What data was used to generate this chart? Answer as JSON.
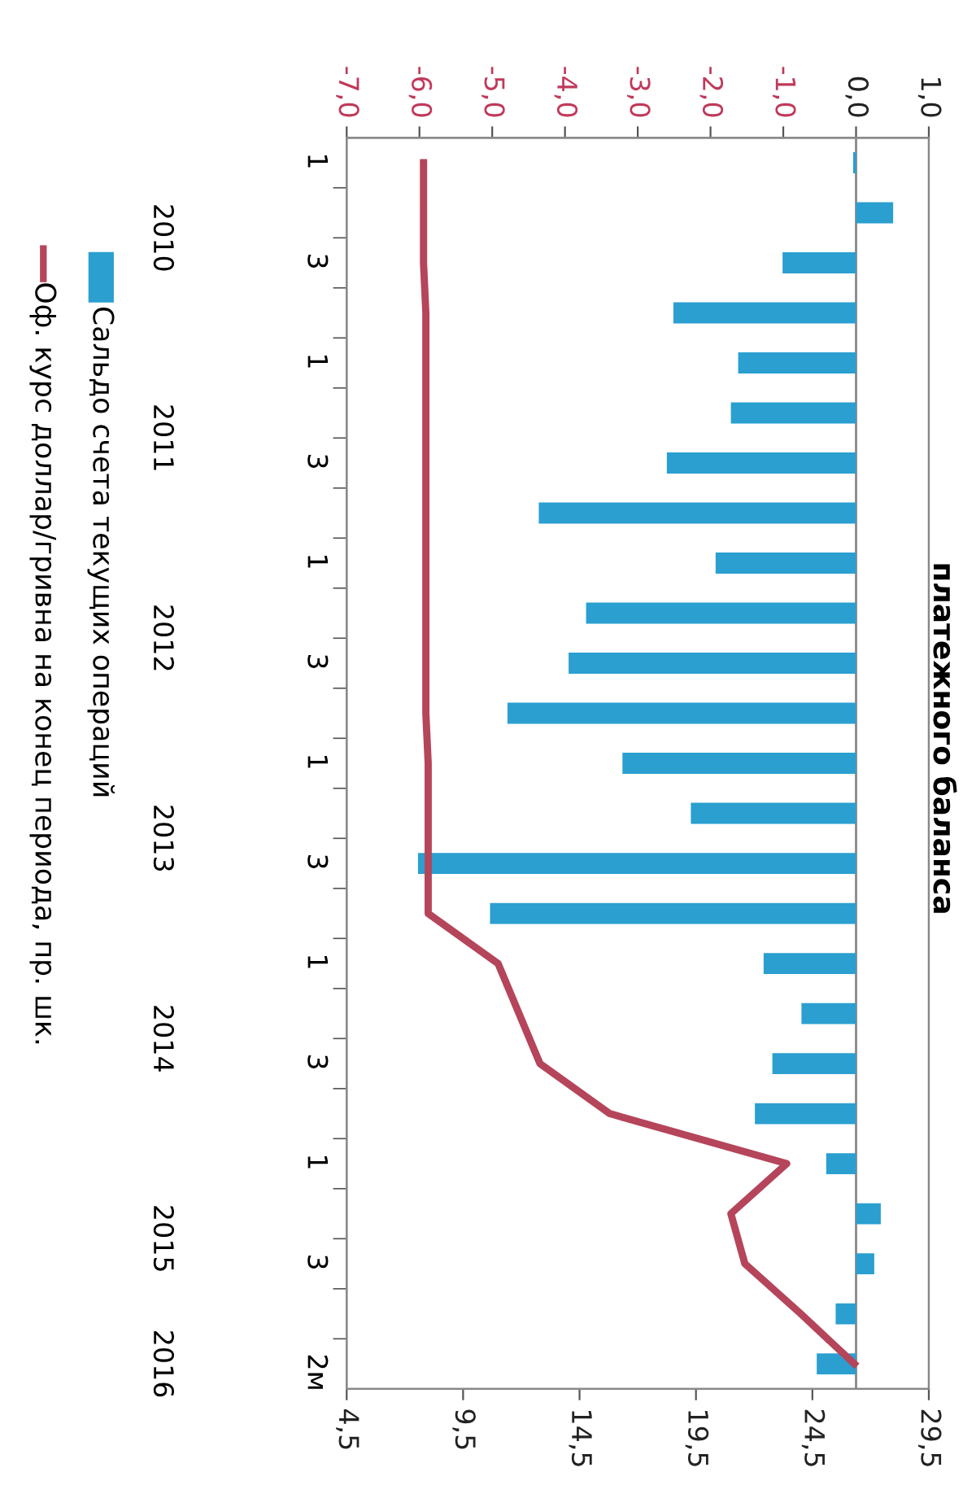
{
  "chart_data": {
    "type": "bar",
    "orientation": "horizontal",
    "title": "платежного баланса",
    "categories": [
      "1",
      null,
      "3",
      null,
      "1",
      null,
      "3",
      null,
      "1",
      null,
      "3",
      null,
      "1",
      null,
      "3",
      null,
      "1",
      null,
      "3",
      null,
      "1",
      null,
      "3",
      null,
      "2м"
    ],
    "annotations": [
      "2010",
      "2011",
      "2012",
      "2013",
      "2014",
      "2015",
      "2016"
    ],
    "series": [
      {
        "name": "Сальдо счета текущих операций",
        "color": "#2a9fd0",
        "values": [
          -0.04,
          0.51,
          -1.01,
          -2.51,
          -1.62,
          -1.72,
          -2.6,
          -4.36,
          -1.93,
          -3.71,
          -3.95,
          -4.79,
          -3.21,
          -2.27,
          -6.02,
          -5.03,
          -1.27,
          -0.75,
          -1.15,
          -1.39,
          -0.41,
          0.34,
          0.25,
          -0.28,
          -0.54
        ]
      },
      {
        "name": "Оф. курс доллар/гривна на конец периода, пр. шк.",
        "type": "line",
        "axis": "x2",
        "color": "#b5455a",
        "values": [
          7.8,
          7.8,
          7.8,
          7.9,
          7.9,
          7.9,
          7.9,
          7.9,
          7.9,
          7.9,
          7.9,
          7.9,
          8.0,
          8.0,
          8.0,
          8.0,
          11.0,
          11.9,
          12.8,
          15.8,
          23.4,
          21.0,
          21.6,
          24.0,
          26.3
        ]
      }
    ],
    "xlim": [
      -7,
      1
    ],
    "xticks": [
      {
        "value": -7,
        "label": "-7,0"
      },
      {
        "value": -6,
        "label": "-6,0"
      },
      {
        "value": -5,
        "label": "-5,0"
      },
      {
        "value": -4,
        "label": "-4,0"
      },
      {
        "value": -3,
        "label": "-3,0"
      },
      {
        "value": -2,
        "label": "-2,0"
      },
      {
        "value": -1,
        "label": "-1,0"
      },
      {
        "value": 0,
        "label": "0,0"
      },
      {
        "value": 1,
        "label": "1,0"
      }
    ],
    "x2lim": [
      4.5,
      29.5
    ],
    "x2ticks": [
      {
        "value": 4.5,
        "label": "4,5"
      },
      {
        "value": 9.5,
        "label": "9,5"
      },
      {
        "value": 14.5,
        "label": "14,5"
      },
      {
        "value": 19.5,
        "label": "19,5"
      },
      {
        "value": 24.5,
        "label": "24,5"
      },
      {
        "value": 29.5,
        "label": "29,5"
      }
    ],
    "ref_lines": [
      {
        "axis": "x",
        "value": 0,
        "color": "#888888"
      }
    ],
    "grid": false,
    "legend": "left",
    "marker": "none",
    "line_style": "solid"
  }
}
